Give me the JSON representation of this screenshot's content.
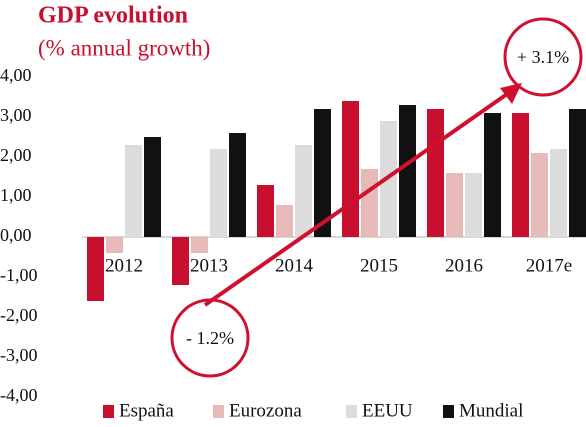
{
  "chart_data": {
    "type": "bar",
    "title": "GDP evolution",
    "subtitle": "(% annual growth)",
    "categories": [
      "2012",
      "2013",
      "2014",
      "2015",
      "2016",
      "2017e"
    ],
    "series": [
      {
        "name": "España",
        "color": "#c8102e",
        "values": [
          -1.6,
          -1.2,
          1.3,
          3.4,
          3.2,
          3.1
        ]
      },
      {
        "name": "Eurozona",
        "color": "#e8b9b9",
        "values": [
          -0.4,
          -0.4,
          0.8,
          1.7,
          1.6,
          2.1
        ]
      },
      {
        "name": "EEUU",
        "color": "#dcdcdc",
        "values": [
          2.3,
          2.2,
          2.3,
          2.9,
          1.6,
          2.2
        ]
      },
      {
        "name": "Mundial",
        "color": "#111111",
        "values": [
          2.5,
          2.6,
          3.2,
          3.3,
          3.1,
          3.2
        ]
      }
    ],
    "ylim": [
      -4,
      4
    ],
    "yticks": [
      {
        "value": 4,
        "label": "4,00"
      },
      {
        "value": 3,
        "label": "3,00"
      },
      {
        "value": 2,
        "label": "2,00"
      },
      {
        "value": 1,
        "label": "1,00"
      },
      {
        "value": 0,
        "label": "0,00"
      },
      {
        "value": -1,
        "label": "-1,00"
      },
      {
        "value": -2,
        "label": "-2,00"
      },
      {
        "value": -3,
        "label": "-3,00"
      },
      {
        "value": -4,
        "label": "-4,00"
      }
    ],
    "annotations": [
      "- 1.2%",
      "+ 3.1%"
    ],
    "legend": "bottom"
  }
}
